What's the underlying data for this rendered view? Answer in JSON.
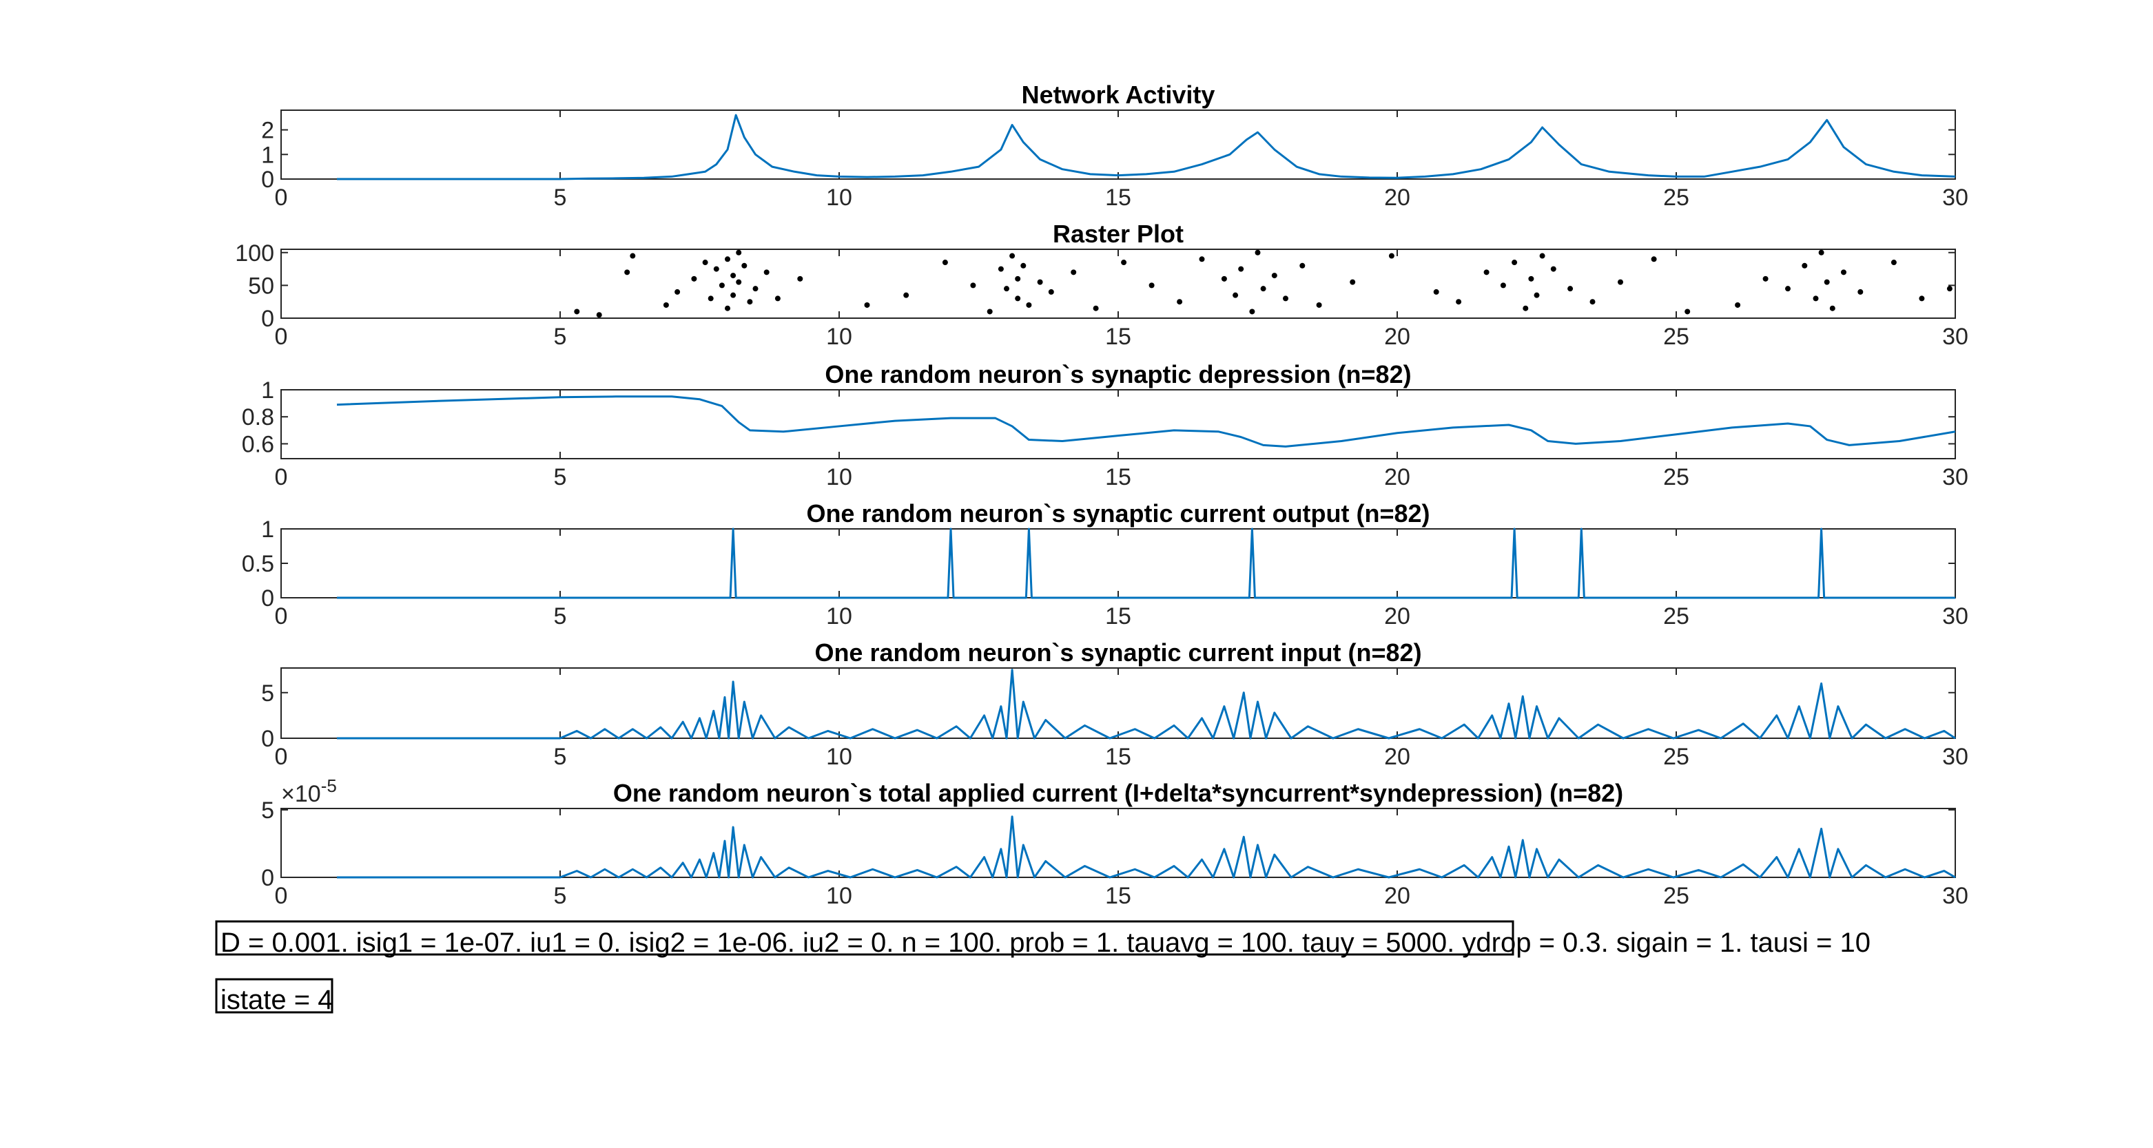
{
  "chart_data": [
    {
      "type": "line",
      "title": "Network Activity",
      "color": "#0072bd",
      "x": [
        1,
        5,
        5.5,
        6,
        6.5,
        7,
        7.3,
        7.6,
        7.8,
        8.0,
        8.15,
        8.3,
        8.5,
        8.8,
        9.2,
        9.6,
        10,
        10.5,
        11,
        11.5,
        12,
        12.5,
        12.9,
        13.1,
        13.3,
        13.6,
        14,
        14.5,
        15,
        15.5,
        16,
        16.5,
        17,
        17.3,
        17.5,
        17.8,
        18.2,
        18.6,
        19,
        19.5,
        20,
        20.5,
        21,
        21.5,
        22,
        22.4,
        22.6,
        22.9,
        23.3,
        23.8,
        24.5,
        25,
        25.5,
        26,
        26.5,
        27,
        27.4,
        27.7,
        28,
        28.4,
        28.9,
        29.4,
        30
      ],
      "values": [
        0,
        0,
        0.02,
        0.03,
        0.05,
        0.1,
        0.2,
        0.3,
        0.6,
        1.2,
        2.6,
        1.7,
        1.0,
        0.5,
        0.3,
        0.15,
        0.1,
        0.08,
        0.1,
        0.15,
        0.3,
        0.5,
        1.2,
        2.2,
        1.5,
        0.8,
        0.4,
        0.2,
        0.15,
        0.2,
        0.3,
        0.6,
        1.0,
        1.6,
        1.9,
        1.2,
        0.5,
        0.2,
        0.1,
        0.06,
        0.05,
        0.1,
        0.2,
        0.4,
        0.8,
        1.5,
        2.1,
        1.4,
        0.6,
        0.3,
        0.15,
        0.1,
        0.1,
        0.3,
        0.5,
        0.8,
        1.5,
        2.4,
        1.3,
        0.6,
        0.3,
        0.15,
        0.1
      ],
      "xlim": [
        0,
        30
      ],
      "xticks": [
        0,
        5,
        10,
        15,
        20,
        25,
        30
      ],
      "ylim": [
        0,
        2.8
      ],
      "yticks": [
        0,
        1,
        2
      ]
    },
    {
      "type": "scatter",
      "title": "Raster Plot",
      "color": "#000000",
      "x": [
        5.3,
        5.7,
        6.2,
        6.3,
        6.9,
        7.1,
        7.4,
        7.6,
        7.7,
        7.8,
        7.9,
        8.0,
        8.0,
        8.1,
        8.1,
        8.2,
        8.2,
        8.3,
        8.4,
        8.5,
        8.7,
        8.9,
        9.3,
        10.5,
        11.2,
        11.9,
        12.4,
        12.7,
        12.9,
        13.0,
        13.1,
        13.2,
        13.2,
        13.3,
        13.4,
        13.6,
        13.8,
        14.2,
        14.6,
        15.1,
        15.6,
        16.1,
        16.5,
        16.9,
        17.1,
        17.2,
        17.4,
        17.5,
        17.6,
        17.8,
        18.0,
        18.3,
        18.6,
        19.2,
        19.9,
        20.7,
        21.1,
        21.6,
        21.9,
        22.1,
        22.3,
        22.4,
        22.5,
        22.6,
        22.8,
        23.1,
        23.5,
        24.0,
        24.6,
        25.2,
        26.1,
        26.6,
        27.0,
        27.3,
        27.5,
        27.6,
        27.7,
        27.8,
        28.0,
        28.3,
        28.9,
        29.4,
        29.9
      ],
      "values": [
        10,
        5,
        70,
        95,
        20,
        40,
        60,
        85,
        30,
        75,
        50,
        90,
        15,
        65,
        35,
        100,
        55,
        80,
        25,
        45,
        70,
        30,
        60,
        20,
        35,
        85,
        50,
        10,
        75,
        45,
        95,
        30,
        60,
        80,
        20,
        55,
        40,
        70,
        15,
        85,
        50,
        25,
        90,
        60,
        35,
        75,
        10,
        100,
        45,
        65,
        30,
        80,
        20,
        55,
        95,
        40,
        25,
        70,
        50,
        85,
        15,
        60,
        35,
        95,
        75,
        45,
        25,
        55,
        90,
        10,
        20,
        60,
        45,
        80,
        30,
        100,
        55,
        15,
        70,
        40,
        85,
        30,
        45
      ],
      "xlim": [
        0,
        30
      ],
      "xticks": [
        0,
        5,
        10,
        15,
        20,
        25,
        30
      ],
      "ylim": [
        0,
        105
      ],
      "yticks": [
        0,
        50,
        100
      ]
    },
    {
      "type": "line",
      "title": "One random neuron`s synaptic depression (n=82)",
      "color": "#0072bd",
      "x": [
        1,
        3,
        5,
        6,
        7,
        7.5,
        7.9,
        8.2,
        8.4,
        9,
        10,
        11,
        12,
        12.8,
        13.1,
        13.4,
        14,
        15,
        16,
        16.8,
        17.2,
        17.6,
        18,
        19,
        20,
        21,
        22,
        22.4,
        22.7,
        23.2,
        24,
        25,
        26,
        27,
        27.4,
        27.7,
        28.1,
        29,
        30
      ],
      "values": [
        0.89,
        0.92,
        0.945,
        0.95,
        0.95,
        0.93,
        0.88,
        0.76,
        0.7,
        0.69,
        0.73,
        0.77,
        0.79,
        0.79,
        0.73,
        0.63,
        0.62,
        0.66,
        0.7,
        0.69,
        0.65,
        0.59,
        0.58,
        0.62,
        0.68,
        0.72,
        0.74,
        0.7,
        0.62,
        0.6,
        0.62,
        0.67,
        0.72,
        0.75,
        0.73,
        0.63,
        0.59,
        0.62,
        0.69
      ],
      "xlim": [
        0,
        30
      ],
      "xticks": [
        0,
        5,
        10,
        15,
        20,
        25,
        30
      ],
      "ylim": [
        0.49,
        1
      ],
      "yticks": [
        0.6,
        0.8,
        1
      ]
    },
    {
      "type": "line",
      "title": "One random neuron`s synaptic current output (n=82)",
      "color": "#0072bd",
      "x": [
        1,
        8.05,
        8.1,
        8.15,
        11.95,
        12,
        12.05,
        13.35,
        13.4,
        13.45,
        17.35,
        17.4,
        17.45,
        22.05,
        22.1,
        22.15,
        23.25,
        23.3,
        23.35,
        27.55,
        27.6,
        27.65,
        30
      ],
      "values": [
        0,
        0,
        1,
        0,
        0,
        1,
        0,
        0,
        1,
        0,
        0,
        1,
        0,
        0,
        1,
        0,
        0,
        1,
        0,
        0,
        1,
        0,
        0
      ],
      "xlim": [
        0,
        30
      ],
      "xticks": [
        0,
        5,
        10,
        15,
        20,
        25,
        30
      ],
      "ylim": [
        0,
        1
      ],
      "yticks": [
        0,
        0.5,
        1
      ]
    },
    {
      "type": "line",
      "title": "One random neuron`s synaptic current input (n=82)",
      "color": "#0072bd",
      "x": [
        1,
        5,
        5.3,
        5.55,
        5.8,
        6.05,
        6.3,
        6.55,
        6.8,
        7.0,
        7.2,
        7.35,
        7.5,
        7.62,
        7.75,
        7.85,
        7.95,
        8.02,
        8.1,
        8.2,
        8.3,
        8.45,
        8.6,
        8.85,
        9.1,
        9.45,
        9.8,
        10.2,
        10.6,
        11,
        11.4,
        11.75,
        12.1,
        12.35,
        12.6,
        12.75,
        12.9,
        13,
        13.1,
        13.2,
        13.3,
        13.5,
        13.7,
        14.05,
        14.4,
        14.85,
        15.3,
        15.65,
        16,
        16.25,
        16.5,
        16.7,
        16.9,
        17.07,
        17.25,
        17.37,
        17.5,
        17.65,
        17.8,
        18.1,
        18.4,
        18.85,
        19.3,
        19.85,
        20.4,
        20.8,
        21.2,
        21.45,
        21.7,
        21.85,
        22,
        22.12,
        22.25,
        22.37,
        22.5,
        22.7,
        22.9,
        23.25,
        23.6,
        24.05,
        24.5,
        24.95,
        25.4,
        25.8,
        26.2,
        26.5,
        26.8,
        27,
        27.2,
        27.4,
        27.6,
        27.75,
        27.9,
        28.15,
        28.4,
        28.75,
        29.1,
        29.45,
        29.8,
        30
      ],
      "values": [
        0,
        0,
        0.8,
        0,
        1,
        0,
        1,
        0,
        1.2,
        0,
        1.8,
        0,
        2.2,
        0,
        3,
        0,
        4.5,
        0,
        6.2,
        0,
        4,
        0,
        2.5,
        0,
        1.2,
        0,
        0.8,
        0,
        1,
        0,
        0.9,
        0,
        1.3,
        0,
        2.5,
        0,
        3.5,
        0,
        7.5,
        0,
        4,
        0,
        2,
        0,
        1.4,
        0,
        1,
        0,
        1.4,
        0,
        2.2,
        0,
        3.5,
        0,
        5,
        0,
        4,
        0,
        2.8,
        0,
        1.3,
        0,
        1,
        0,
        1,
        0,
        1.5,
        0,
        2.5,
        0,
        3.8,
        0,
        4.6,
        0,
        3.5,
        0,
        2.2,
        0,
        1.5,
        0,
        1,
        0,
        0.9,
        0,
        1.6,
        0,
        2.5,
        0,
        3.5,
        0,
        6,
        0,
        3.5,
        0,
        1.5,
        0,
        1,
        0,
        0.8,
        0
      ],
      "xlim": [
        0,
        30
      ],
      "xticks": [
        0,
        5,
        10,
        15,
        20,
        25,
        30
      ],
      "ylim": [
        0,
        7.7
      ],
      "yticks": [
        0,
        5
      ]
    },
    {
      "type": "line",
      "title": "One random neuron`s total applied current (I+delta*syncurrent*syndepression) (n=82)",
      "color": "#0072bd",
      "x": [
        1,
        5,
        5.3,
        5.55,
        5.8,
        6.05,
        6.3,
        6.55,
        6.8,
        7.0,
        7.2,
        7.35,
        7.5,
        7.62,
        7.75,
        7.85,
        7.95,
        8.02,
        8.1,
        8.2,
        8.3,
        8.45,
        8.6,
        8.85,
        9.1,
        9.45,
        9.8,
        10.2,
        10.6,
        11,
        11.4,
        11.75,
        12.1,
        12.35,
        12.6,
        12.75,
        12.9,
        13,
        13.1,
        13.2,
        13.3,
        13.5,
        13.7,
        14.05,
        14.4,
        14.85,
        15.3,
        15.65,
        16,
        16.25,
        16.5,
        16.7,
        16.9,
        17.07,
        17.25,
        17.37,
        17.5,
        17.65,
        17.8,
        18.1,
        18.4,
        18.85,
        19.3,
        19.85,
        20.4,
        20.8,
        21.2,
        21.45,
        21.7,
        21.85,
        22,
        22.12,
        22.25,
        22.37,
        22.5,
        22.7,
        22.9,
        23.25,
        23.6,
        24.05,
        24.5,
        24.95,
        25.4,
        25.8,
        26.2,
        26.5,
        26.8,
        27,
        27.2,
        27.4,
        27.6,
        27.75,
        27.9,
        28.15,
        28.4,
        28.75,
        29.1,
        29.45,
        29.8,
        30
      ],
      "values": [
        0,
        0,
        4.8e-06,
        0,
        6e-06,
        0,
        6e-06,
        0,
        7.2e-06,
        0,
        1.08e-05,
        0,
        1.32e-05,
        0,
        1.8e-05,
        0,
        2.7e-05,
        0,
        3.72e-05,
        0,
        2.4e-05,
        0,
        1.5e-05,
        0,
        7.2e-06,
        0,
        4.8e-06,
        0,
        6e-06,
        0,
        5.4e-06,
        0,
        7.8e-06,
        0,
        1.5e-05,
        0,
        2.1e-05,
        0,
        4.5e-05,
        0,
        2.4e-05,
        0,
        1.2e-05,
        0,
        8.4e-06,
        0,
        6e-06,
        0,
        8.4e-06,
        0,
        1.32e-05,
        0,
        2.1e-05,
        0,
        3e-05,
        0,
        2.4e-05,
        0,
        1.68e-05,
        0,
        7.8e-06,
        0,
        6e-06,
        0,
        6e-06,
        0,
        9e-06,
        0,
        1.5e-05,
        0,
        2.28e-05,
        0,
        2.76e-05,
        0,
        2.1e-05,
        0,
        1.32e-05,
        0,
        9e-06,
        0,
        6e-06,
        0,
        5.4e-06,
        0,
        9.6e-06,
        0,
        1.5e-05,
        0,
        2.1e-05,
        0,
        3.6e-05,
        0,
        2.1e-05,
        0,
        9e-06,
        0,
        6e-06,
        0,
        4.8e-06,
        0
      ],
      "xlim": [
        0,
        30
      ],
      "xticks": [
        0,
        5,
        10,
        15,
        20,
        25,
        30
      ],
      "ylim": [
        0,
        5.1e-05
      ],
      "yticks": [
        0,
        {
          "value": 5e-05,
          "label": "5"
        }
      ],
      "exponent": {
        "base": "×10",
        "power": "-5"
      }
    }
  ],
  "annotations": [
    "D = 0.001. isig1 = 1e-07. iu1 = 0. isig2 = 1e-06. iu2 = 0. n = 100. prob = 1. tauavg = 100. tauy = 5000. ydrop = 0.3. sigain = 1. tausi = 10",
    "istate = 4"
  ]
}
